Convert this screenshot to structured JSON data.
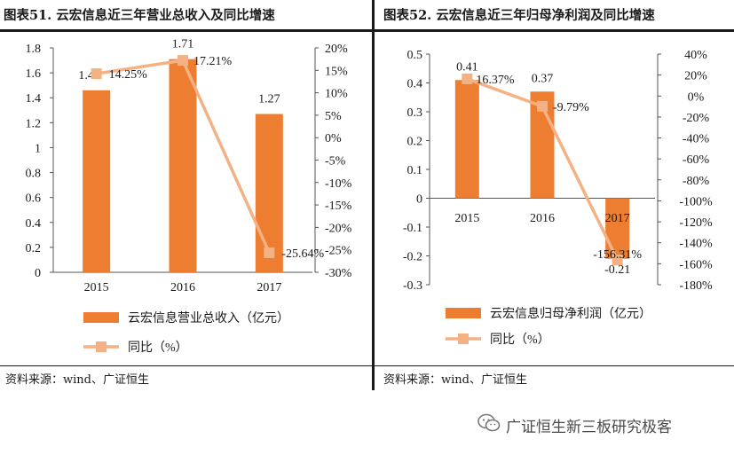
{
  "left_panel": {
    "title": "图表51.  云宏信息近三年营业总收入及同比增速",
    "source": "资料来源：wind、广证恒生"
  },
  "right_panel": {
    "title": "图表52.  云宏信息近三年归母净利润及同比增速",
    "source": "资料来源：wind、广证恒生"
  },
  "watermark": {
    "text": "广证恒生新三板研究极客",
    "icon": "wechat-icon"
  },
  "colors": {
    "bar": "#ED7D31",
    "line": "#F4B183",
    "text": "#1a1a1a",
    "rule": "#1a1a1a"
  },
  "chart_data": [
    {
      "type": "bar+line",
      "categories": [
        "2015",
        "2016",
        "2017"
      ],
      "series": [
        {
          "name": "云宏信息营业总收入（亿元）",
          "kind": "bar",
          "axis": "left",
          "values": [
            1.46,
            1.71,
            1.27
          ],
          "labels": [
            "1.46",
            "1.71",
            "1.27"
          ]
        },
        {
          "name": "同比（%）",
          "kind": "line",
          "axis": "right",
          "values": [
            14.25,
            17.21,
            -25.64
          ],
          "labels": [
            "14.25%",
            "17.21%",
            "-25.64%"
          ]
        }
      ],
      "left_axis": {
        "range": [
          0,
          1.8
        ],
        "ticks": [
          "0",
          "0.2",
          "0.4",
          "0.6",
          "0.8",
          "1",
          "1.2",
          "1.4",
          "1.6",
          "1.8"
        ]
      },
      "right_axis": {
        "range": [
          -30,
          20
        ],
        "ticks": [
          "-30%",
          "-25%",
          "-20%",
          "-15%",
          "-10%",
          "-5%",
          "0%",
          "5%",
          "10%",
          "15%",
          "20%"
        ]
      },
      "grid": false,
      "legend": "bottom"
    },
    {
      "type": "bar+line",
      "categories": [
        "2015",
        "2016",
        "2017"
      ],
      "series": [
        {
          "name": "云宏信息归母净利润（亿元）",
          "kind": "bar",
          "axis": "left",
          "values": [
            0.41,
            0.37,
            -0.21
          ],
          "labels": [
            "0.41",
            "0.37",
            "-0.21"
          ]
        },
        {
          "name": "同比（%）",
          "kind": "line",
          "axis": "right",
          "values": [
            16.37,
            -9.79,
            -156.31
          ],
          "labels": [
            "16.37%",
            "-9.79%",
            "-156.31%"
          ]
        }
      ],
      "left_axis": {
        "range": [
          -0.3,
          0.5
        ],
        "ticks": [
          "-0.3",
          "-0.2",
          "-0.1",
          "0",
          "0.1",
          "0.2",
          "0.3",
          "0.4",
          "0.5"
        ]
      },
      "right_axis": {
        "range": [
          -180,
          40
        ],
        "ticks": [
          "-180%",
          "-160%",
          "-140%",
          "-120%",
          "-100%",
          "-80%",
          "-60%",
          "-40%",
          "-20%",
          "0%",
          "20%",
          "40%"
        ]
      },
      "grid": false,
      "legend": "bottom"
    }
  ]
}
